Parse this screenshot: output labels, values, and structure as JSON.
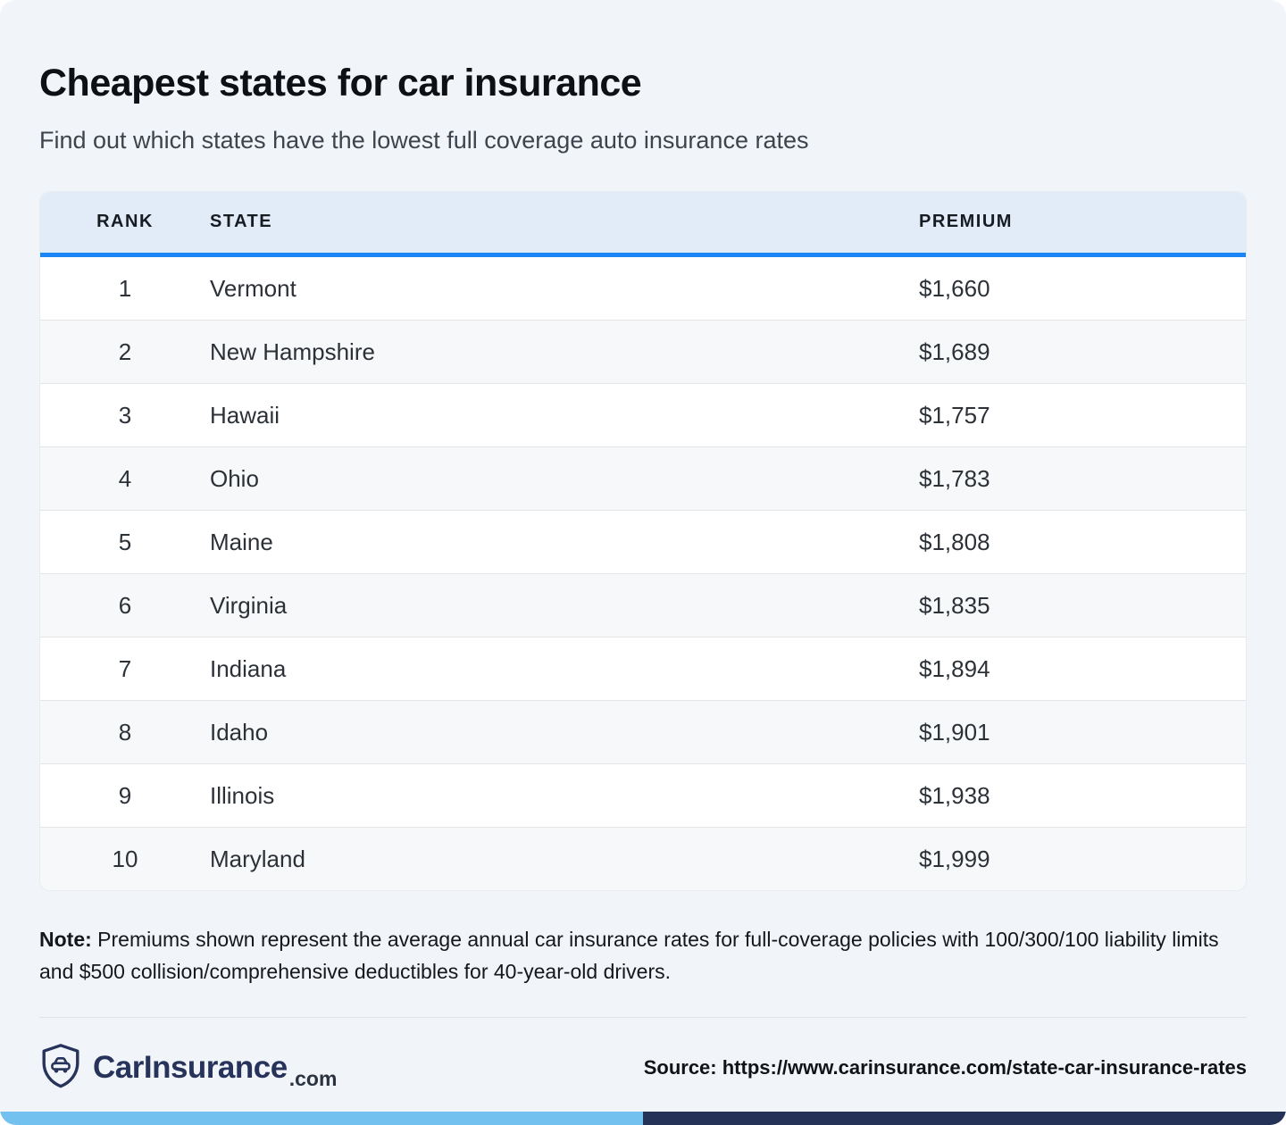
{
  "page": {
    "title": "Cheapest states for car insurance",
    "subtitle": "Find out which states have the lowest full coverage auto insurance rates"
  },
  "table": {
    "headers": [
      "RANK",
      "STATE",
      "PREMIUM"
    ],
    "rows": [
      {
        "rank": "1",
        "state": "Vermont",
        "premium": "$1,660"
      },
      {
        "rank": "2",
        "state": "New Hampshire",
        "premium": "$1,689"
      },
      {
        "rank": "3",
        "state": "Hawaii",
        "premium": "$1,757"
      },
      {
        "rank": "4",
        "state": "Ohio",
        "premium": "$1,783"
      },
      {
        "rank": "5",
        "state": "Maine",
        "premium": "$1,808"
      },
      {
        "rank": "6",
        "state": "Virginia",
        "premium": "$1,835"
      },
      {
        "rank": "7",
        "state": "Indiana",
        "premium": "$1,894"
      },
      {
        "rank": "8",
        "state": "Idaho",
        "premium": "$1,901"
      },
      {
        "rank": "9",
        "state": "Illinois",
        "premium": "$1,938"
      },
      {
        "rank": "10",
        "state": "Maryland",
        "premium": "$1,999"
      }
    ]
  },
  "note": {
    "label": "Note:",
    "text": " Premiums shown represent the average annual car insurance rates for full-coverage policies with 100/300/100 liability limits and $500 collision/comprehensive deductibles for 40-year-old drivers."
  },
  "footer": {
    "brand": "CarInsurance",
    "brand_suffix": ".com",
    "shield_icon": "shield-car-icon",
    "source": "Source: https://www.carinsurance.com/state-car-insurance-rates"
  },
  "colors": {
    "page_background": "#f1f5f9",
    "header_background": "#e2ecf9",
    "header_underline": "#1d86f5",
    "alt_row": "#f7f8f9",
    "brand_navy": "#27335a",
    "bar_light_blue": "#73c1ef",
    "bar_dark_navy": "#253257"
  },
  "chart_data": {
    "type": "table",
    "title": "Cheapest states for car insurance",
    "subtitle": "Find out which states have the lowest full coverage auto insurance rates",
    "columns": [
      "Rank",
      "State",
      "Premium"
    ],
    "categories": [
      "Vermont",
      "New Hampshire",
      "Hawaii",
      "Ohio",
      "Maine",
      "Virginia",
      "Indiana",
      "Idaho",
      "Illinois",
      "Maryland"
    ],
    "values": [
      1660,
      1689,
      1757,
      1783,
      1808,
      1835,
      1894,
      1901,
      1938,
      1999
    ],
    "value_unit": "USD per year",
    "source": "https://www.carinsurance.com/state-car-insurance-rates"
  }
}
